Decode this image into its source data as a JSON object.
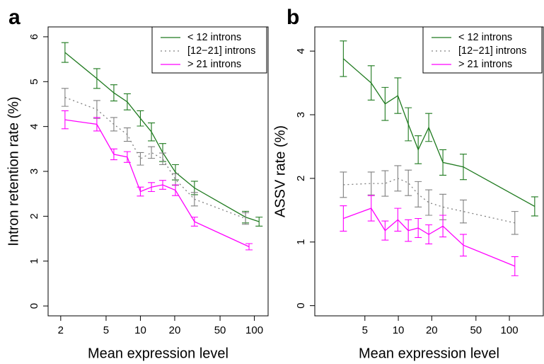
{
  "chart_data": [
    {
      "type": "line",
      "panel_label": "a",
      "x_label": "Mean expression level",
      "y_label": "Intron retention rate (%)",
      "log_x": true,
      "xlim": [
        1.55,
        132
      ],
      "ylim": [
        -0.22,
        6.22
      ],
      "xticks": [
        2,
        5,
        10,
        20,
        50,
        100
      ],
      "yticks": [
        0,
        1,
        2,
        3,
        4,
        5,
        6
      ],
      "legend": "top-right",
      "series": [
        {
          "name": "< 12 introns",
          "color": "#1f7a1f",
          "dash": "solid",
          "x": [
            2.18,
            4.15,
            5.85,
            7.67,
            10,
            12.5,
            15.7,
            20.3,
            29.8,
            83.6,
            110
          ],
          "values": [
            5.65,
            5.07,
            4.75,
            4.55,
            4.18,
            3.88,
            3.42,
            2.98,
            2.63,
            1.98,
            1.88
          ],
          "errors": [
            0.22,
            0.22,
            0.18,
            0.18,
            0.17,
            0.2,
            0.2,
            0.17,
            0.15,
            0.13,
            0.1
          ]
        },
        {
          "name": "[12−21] introns",
          "color": "#808080",
          "dash": "dotted",
          "x": [
            2.18,
            4.15,
            5.85,
            7.67,
            10,
            12.5,
            15.7,
            20.3,
            29.8,
            83.6
          ],
          "values": [
            4.65,
            4.38,
            4.05,
            3.82,
            3.28,
            3.42,
            3.28,
            2.82,
            2.38,
            1.95
          ],
          "errors": [
            0.2,
            0.2,
            0.15,
            0.15,
            0.14,
            0.13,
            0.13,
            0.13,
            0.15,
            0.13
          ]
        },
        {
          "name": "> 21 introns",
          "color": "#ff00ff",
          "dash": "solid",
          "x": [
            2.18,
            4.15,
            5.85,
            7.67,
            10,
            12.5,
            15.7,
            20.3,
            29.8,
            89.8
          ],
          "values": [
            4.15,
            4.05,
            3.38,
            3.32,
            2.55,
            2.65,
            2.7,
            2.58,
            1.88,
            1.32
          ],
          "errors": [
            0.2,
            0.15,
            0.12,
            0.12,
            0.1,
            0.1,
            0.1,
            0.12,
            0.1,
            0.07
          ]
        }
      ]
    },
    {
      "type": "line",
      "panel_label": "b",
      "x_label": "Mean expression level",
      "y_label": "ASSV rate (%)",
      "log_x": true,
      "xlim": [
        1.77,
        202
      ],
      "ylim": [
        -0.16,
        4.38
      ],
      "xticks": [
        5,
        10,
        20,
        50,
        100
      ],
      "yticks": [
        0,
        1,
        2,
        3,
        4
      ],
      "legend": "top-right",
      "series": [
        {
          "name": "< 12 introns",
          "color": "#1f7a1f",
          "dash": "solid",
          "x": [
            3.2,
            5.7,
            7.6,
            9.9,
            12.3,
            15.1,
            18.8,
            25.2,
            38.5,
            169
          ],
          "values": [
            3.88,
            3.5,
            3.17,
            3.3,
            2.85,
            2.45,
            2.8,
            2.25,
            2.18,
            1.56
          ],
          "errors": [
            0.28,
            0.27,
            0.26,
            0.28,
            0.26,
            0.22,
            0.22,
            0.2,
            0.2,
            0.15
          ]
        },
        {
          "name": "[12−21] introns",
          "color": "#808080",
          "dash": "dotted",
          "x": [
            3.2,
            5.7,
            7.6,
            9.9,
            12.3,
            15.1,
            18.8,
            25.2,
            38.5,
            112
          ],
          "values": [
            1.9,
            1.92,
            1.92,
            2.0,
            1.93,
            1.75,
            1.62,
            1.55,
            1.48,
            1.3
          ],
          "errors": [
            0.2,
            0.18,
            0.2,
            0.2,
            0.2,
            0.2,
            0.2,
            0.2,
            0.18,
            0.18
          ]
        },
        {
          "name": "> 21 introns",
          "color": "#ff00ff",
          "dash": "solid",
          "x": [
            3.2,
            5.7,
            7.6,
            9.9,
            12.3,
            15.1,
            18.8,
            25.2,
            38.5,
            112
          ],
          "values": [
            1.37,
            1.53,
            1.18,
            1.35,
            1.18,
            1.22,
            1.12,
            1.25,
            0.95,
            0.62
          ],
          "errors": [
            0.2,
            0.2,
            0.15,
            0.18,
            0.17,
            0.15,
            0.15,
            0.17,
            0.17,
            0.15
          ]
        }
      ]
    }
  ]
}
